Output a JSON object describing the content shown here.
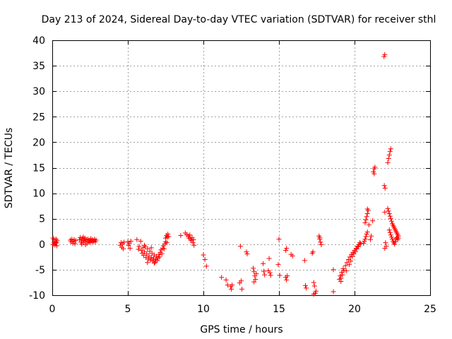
{
  "chart_data": {
    "type": "scatter",
    "title": "Day 213 of 2024, Sidereal Day-to-day VTEC variation (SDTVAR) for receiver sthl",
    "xlabel": "GPS time / hours",
    "ylabel": "SDTVAR / TECUs",
    "xlim": [
      0,
      25
    ],
    "ylim": [
      -10,
      40
    ],
    "xticks": [
      0,
      5,
      10,
      15,
      20,
      25
    ],
    "yticks": [
      -10,
      -5,
      0,
      5,
      10,
      15,
      20,
      25,
      30,
      35,
      40
    ],
    "grid": true,
    "marker": "plus",
    "color": "#ff0000",
    "series": [
      {
        "name": "SDTVAR",
        "points": [
          [
            0.05,
            1.2
          ],
          [
            0.1,
            0.9
          ],
          [
            0.12,
            0.4
          ],
          [
            0.15,
            0.1
          ],
          [
            0.18,
            -0.2
          ],
          [
            0.22,
            0.5
          ],
          [
            0.25,
            1.0
          ],
          [
            0.28,
            0.3
          ],
          [
            0.3,
            -0.3
          ],
          [
            0.32,
            0.7
          ],
          [
            0.05,
            -0.1
          ],
          [
            0.2,
            0.2
          ],
          [
            1.2,
            0.8
          ],
          [
            1.25,
            0.5
          ],
          [
            1.3,
            1.0
          ],
          [
            1.35,
            0.2
          ],
          [
            1.4,
            0.6
          ],
          [
            1.45,
            0.9
          ],
          [
            1.5,
            0.1
          ],
          [
            1.55,
            0.7
          ],
          [
            1.8,
            0.9
          ],
          [
            1.85,
            1.3
          ],
          [
            1.9,
            0.4
          ],
          [
            1.95,
            0.8
          ],
          [
            2.0,
            1.1
          ],
          [
            2.05,
            0.3
          ],
          [
            2.1,
            0.7
          ],
          [
            2.15,
            1.2
          ],
          [
            2.2,
            0.6
          ],
          [
            2.25,
            0.9
          ],
          [
            2.3,
            0.2
          ],
          [
            2.35,
            1.0
          ],
          [
            2.4,
            0.5
          ],
          [
            2.45,
            0.8
          ],
          [
            2.5,
            0.3
          ],
          [
            2.55,
            1.1
          ],
          [
            2.6,
            0.6
          ],
          [
            2.65,
            0.9
          ],
          [
            2.7,
            0.4
          ],
          [
            2.75,
            0.7
          ],
          [
            2.8,
            1.0
          ],
          [
            2.85,
            0.5
          ],
          [
            2.9,
            0.8
          ],
          [
            1.95,
            0.0
          ],
          [
            2.05,
            1.4
          ],
          [
            2.2,
            -0.1
          ],
          [
            4.5,
            -0.2
          ],
          [
            4.55,
            0.3
          ],
          [
            4.6,
            -0.6
          ],
          [
            4.65,
            0.1
          ],
          [
            4.7,
            -0.9
          ],
          [
            4.75,
            0.4
          ],
          [
            5.0,
            0.5
          ],
          [
            5.05,
            -0.2
          ],
          [
            5.1,
            0.2
          ],
          [
            5.15,
            -0.8
          ],
          [
            5.2,
            0.6
          ],
          [
            5.6,
            0.9
          ],
          [
            5.7,
            -1.0
          ],
          [
            5.75,
            -0.4
          ],
          [
            5.85,
            0.6
          ],
          [
            5.9,
            -1.2
          ],
          [
            5.95,
            -1.8
          ],
          [
            6.0,
            -0.7
          ],
          [
            6.05,
            -2.2
          ],
          [
            6.1,
            -1.5
          ],
          [
            6.15,
            -0.5
          ],
          [
            6.2,
            -2.6
          ],
          [
            6.25,
            -1.9
          ],
          [
            6.3,
            -0.9
          ],
          [
            6.35,
            -2.9
          ],
          [
            6.4,
            -2.3
          ],
          [
            6.45,
            -1.4
          ],
          [
            6.5,
            -3.1
          ],
          [
            6.55,
            -2.6
          ],
          [
            6.6,
            -1.8
          ],
          [
            6.65,
            -3.3
          ],
          [
            6.7,
            -2.8
          ],
          [
            6.75,
            -2.1
          ],
          [
            6.8,
            -3.5
          ],
          [
            6.85,
            -3.0
          ],
          [
            6.9,
            -2.4
          ],
          [
            6.95,
            -3.2
          ],
          [
            7.0,
            -2.7
          ],
          [
            7.05,
            -2.0
          ],
          [
            7.1,
            -2.5
          ],
          [
            7.15,
            -1.6
          ],
          [
            7.2,
            -1.1
          ],
          [
            7.25,
            -1.9
          ],
          [
            7.3,
            -0.8
          ],
          [
            7.35,
            -0.3
          ],
          [
            7.4,
            -0.9
          ],
          [
            7.45,
            0.1
          ],
          [
            7.5,
            0.5
          ],
          [
            6.1,
            -0.2
          ],
          [
            6.3,
            -3.6
          ],
          [
            6.55,
            -0.7
          ],
          [
            6.75,
            -3.7
          ],
          [
            7.5,
            1.2
          ],
          [
            7.55,
            1.7
          ],
          [
            7.6,
            1.4
          ],
          [
            7.65,
            2.0
          ],
          [
            7.7,
            1.5
          ],
          [
            7.58,
            0.3
          ],
          [
            8.5,
            1.7
          ],
          [
            8.8,
            2.2
          ],
          [
            8.9,
            1.9
          ],
          [
            9.0,
            1.6
          ],
          [
            9.05,
            1.2
          ],
          [
            9.1,
            1.8
          ],
          [
            9.15,
            1.0
          ],
          [
            9.2,
            0.7
          ],
          [
            9.25,
            1.3
          ],
          [
            9.3,
            0.3
          ],
          [
            9.35,
            0.9
          ],
          [
            9.38,
            -0.2
          ],
          [
            10.0,
            -2.1
          ],
          [
            10.1,
            -3.0
          ],
          [
            10.2,
            -4.3
          ],
          [
            11.2,
            -6.5
          ],
          [
            11.5,
            -7.0
          ],
          [
            11.6,
            -8.0
          ],
          [
            11.8,
            -8.3
          ],
          [
            11.85,
            -8.8
          ],
          [
            11.9,
            -8.0
          ],
          [
            12.4,
            -7.6
          ],
          [
            12.45,
            -0.4
          ],
          [
            12.5,
            -7.2
          ],
          [
            12.55,
            -8.8
          ],
          [
            12.85,
            -1.5
          ],
          [
            12.9,
            -1.9
          ],
          [
            13.3,
            -4.7
          ],
          [
            13.35,
            -5.4
          ],
          [
            13.4,
            -6.2
          ],
          [
            13.45,
            -6.9
          ],
          [
            13.35,
            -7.4
          ],
          [
            13.5,
            -5.8
          ],
          [
            13.95,
            -3.8
          ],
          [
            14.0,
            -5.3
          ],
          [
            14.05,
            -6.0
          ],
          [
            14.3,
            -5.2
          ],
          [
            14.35,
            -2.8
          ],
          [
            14.4,
            -5.6
          ],
          [
            14.45,
            -6.1
          ],
          [
            14.95,
            -4.0
          ],
          [
            15.0,
            1.0
          ],
          [
            15.05,
            -6.1
          ],
          [
            15.45,
            -6.5
          ],
          [
            15.5,
            -7.0
          ],
          [
            15.55,
            -6.2
          ],
          [
            15.45,
            -1.2
          ],
          [
            15.5,
            -0.8
          ],
          [
            15.8,
            -2.0
          ],
          [
            15.9,
            -2.3
          ],
          [
            16.7,
            -3.2
          ],
          [
            16.75,
            -8.1
          ],
          [
            16.8,
            -8.6
          ],
          [
            17.2,
            -1.8
          ],
          [
            17.25,
            -1.5
          ],
          [
            17.3,
            -7.5
          ],
          [
            17.35,
            -8.2
          ],
          [
            17.4,
            -9.6
          ],
          [
            17.45,
            -9.2
          ],
          [
            17.3,
            -9.8
          ],
          [
            17.65,
            1.6
          ],
          [
            17.7,
            1.0
          ],
          [
            17.75,
            0.4
          ],
          [
            17.8,
            -0.1
          ],
          [
            17.7,
            1.3
          ],
          [
            18.6,
            -5.0
          ],
          [
            18.6,
            -9.3
          ],
          [
            19.0,
            -6.9
          ],
          [
            19.05,
            -6.2
          ],
          [
            19.1,
            -7.3
          ],
          [
            19.15,
            -5.5
          ],
          [
            19.2,
            -6.0
          ],
          [
            19.25,
            -4.8
          ],
          [
            19.3,
            -5.2
          ],
          [
            19.4,
            -4.2
          ],
          [
            19.5,
            -3.6
          ],
          [
            19.6,
            -3.0
          ],
          [
            19.7,
            -2.5
          ],
          [
            19.75,
            -3.3
          ],
          [
            19.8,
            -2.0
          ],
          [
            19.85,
            -2.4
          ],
          [
            19.9,
            -1.6
          ],
          [
            19.95,
            -1.9
          ],
          [
            20.0,
            -1.2
          ],
          [
            20.05,
            -1.5
          ],
          [
            20.1,
            -0.8
          ],
          [
            20.15,
            -0.9
          ],
          [
            20.2,
            -0.4
          ],
          [
            20.25,
            -0.5
          ],
          [
            20.3,
            -0.1
          ],
          [
            20.35,
            0.3
          ],
          [
            20.4,
            0.1
          ],
          [
            19.65,
            -4.0
          ],
          [
            19.45,
            -5.2
          ],
          [
            19.1,
            -6.7
          ],
          [
            20.6,
            0.2
          ],
          [
            20.65,
            0.6
          ],
          [
            20.7,
            1.0
          ],
          [
            20.75,
            1.5
          ],
          [
            20.8,
            2.0
          ],
          [
            20.85,
            2.4
          ],
          [
            20.7,
            4.2
          ],
          [
            20.75,
            4.8
          ],
          [
            20.8,
            5.4
          ],
          [
            20.85,
            6.0
          ],
          [
            20.9,
            6.6
          ],
          [
            20.85,
            6.9
          ],
          [
            20.95,
            3.8
          ],
          [
            21.05,
            0.9
          ],
          [
            21.1,
            1.6
          ],
          [
            21.2,
            4.6
          ],
          [
            21.25,
            14.2
          ],
          [
            21.3,
            14.8
          ],
          [
            21.35,
            15.1
          ],
          [
            21.3,
            13.8
          ],
          [
            21.95,
            36.8
          ],
          [
            22.0,
            37.2
          ],
          [
            21.97,
            11.5
          ],
          [
            22.02,
            11.0
          ],
          [
            22.0,
            6.3
          ],
          [
            22.0,
            -0.8
          ],
          [
            22.05,
            0.3
          ],
          [
            22.1,
            -0.4
          ],
          [
            22.2,
            16.0
          ],
          [
            22.25,
            16.8
          ],
          [
            22.3,
            17.5
          ],
          [
            22.35,
            18.2
          ],
          [
            22.4,
            18.7
          ],
          [
            22.2,
            7.0
          ],
          [
            22.25,
            6.5
          ],
          [
            22.3,
            6.0
          ],
          [
            22.35,
            5.5
          ],
          [
            22.4,
            5.0
          ],
          [
            22.45,
            4.5
          ],
          [
            22.5,
            4.0
          ],
          [
            22.55,
            3.7
          ],
          [
            22.6,
            3.4
          ],
          [
            22.65,
            3.1
          ],
          [
            22.7,
            2.8
          ],
          [
            22.75,
            2.5
          ],
          [
            22.8,
            2.2
          ],
          [
            22.85,
            1.9
          ],
          [
            22.9,
            1.6
          ],
          [
            22.3,
            2.8
          ],
          [
            22.35,
            2.3
          ],
          [
            22.4,
            1.8
          ],
          [
            22.45,
            1.4
          ],
          [
            22.5,
            1.0
          ],
          [
            22.55,
            0.6
          ],
          [
            22.6,
            0.3
          ],
          [
            22.65,
            0.0
          ],
          [
            22.7,
            0.5
          ],
          [
            22.75,
            1.1
          ],
          [
            22.8,
            1.3
          ],
          [
            22.85,
            0.9
          ],
          [
            22.9,
            1.2
          ]
        ]
      }
    ]
  }
}
